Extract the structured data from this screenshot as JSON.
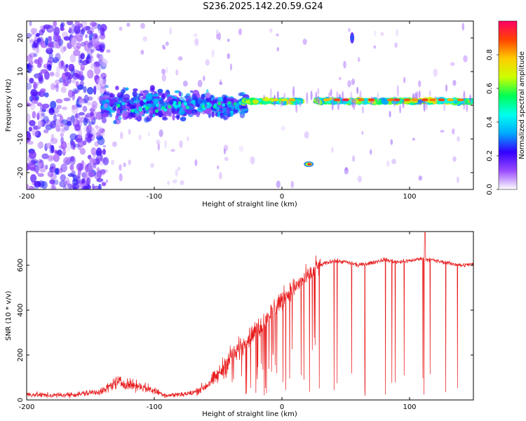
{
  "title": "S236.2025.142.20.59.G24",
  "colors": {
    "snr_line": "#e8191b",
    "frame": "#000000"
  },
  "chart_data": [
    {
      "type": "heatmap",
      "xlabel": "Height of straight line (km)",
      "ylabel": "Frequency (Hz)",
      "xlim": [
        -200,
        150
      ],
      "ylim": [
        -25,
        25
      ],
      "xticks": [
        -200,
        -100,
        0,
        100
      ],
      "yticks": [
        -20,
        -10,
        0,
        10,
        20
      ],
      "colorbar": {
        "label": "Normalized spectral amplitude",
        "range": [
          0,
          1
        ],
        "ticks": [
          "0.0",
          "0.2",
          "0.4",
          "0.6",
          "0.8"
        ],
        "colormap": [
          "#ffffff",
          "#9a4bff",
          "#3300ff",
          "#00aaff",
          "#00ffee",
          "#00ff55",
          "#ccff00",
          "#ffcc00",
          "#ff4400",
          "#ff0066"
        ]
      },
      "features": [
        {
          "description": "scattered weak noise",
          "x_range": [
            -200,
            -140
          ],
          "y_range": [
            -25,
            25
          ],
          "amplitude": [
            0.05,
            0.25
          ]
        },
        {
          "description": "broad band",
          "x_range": [
            -140,
            -30
          ],
          "y_range": [
            -8,
            8
          ],
          "amplitude": [
            0.1,
            0.35
          ]
        },
        {
          "description": "main tone",
          "x_range": [
            -30,
            150
          ],
          "y_center": 1.5,
          "amplitude": [
            0.4,
            1.0
          ]
        },
        {
          "description": "isolated tone",
          "x_center": 22,
          "y_center": -17.5,
          "amplitude": 0.95
        },
        {
          "description": "isolated tone",
          "x_center": 55,
          "y_center": 20,
          "amplitude": 0.25
        }
      ]
    },
    {
      "type": "line",
      "xlabel": "Height of straight line (km)",
      "ylabel": "SNR (10 * v/v)",
      "xlim": [
        -200,
        150
      ],
      "ylim": [
        0,
        750
      ],
      "xticks": [
        -200,
        -100,
        0,
        100
      ],
      "yticks": [
        0,
        200,
        400,
        600
      ],
      "series": [
        {
          "x": [
            -200,
            -180,
            -160,
            -140,
            -130,
            -120,
            -110,
            -100,
            -90,
            -80,
            -70,
            -60,
            -50,
            -40,
            -30,
            -20,
            -10,
            0,
            10,
            20,
            30,
            40,
            50,
            60,
            70,
            80,
            90,
            100,
            110,
            120,
            130,
            140,
            150
          ],
          "values": [
            25,
            20,
            25,
            40,
            80,
            70,
            60,
            40,
            20,
            25,
            30,
            60,
            110,
            190,
            250,
            310,
            380,
            450,
            500,
            550,
            600,
            620,
            615,
            600,
            610,
            625,
            615,
            620,
            630,
            620,
            610,
            600,
            605
          ]
        }
      ]
    }
  ]
}
